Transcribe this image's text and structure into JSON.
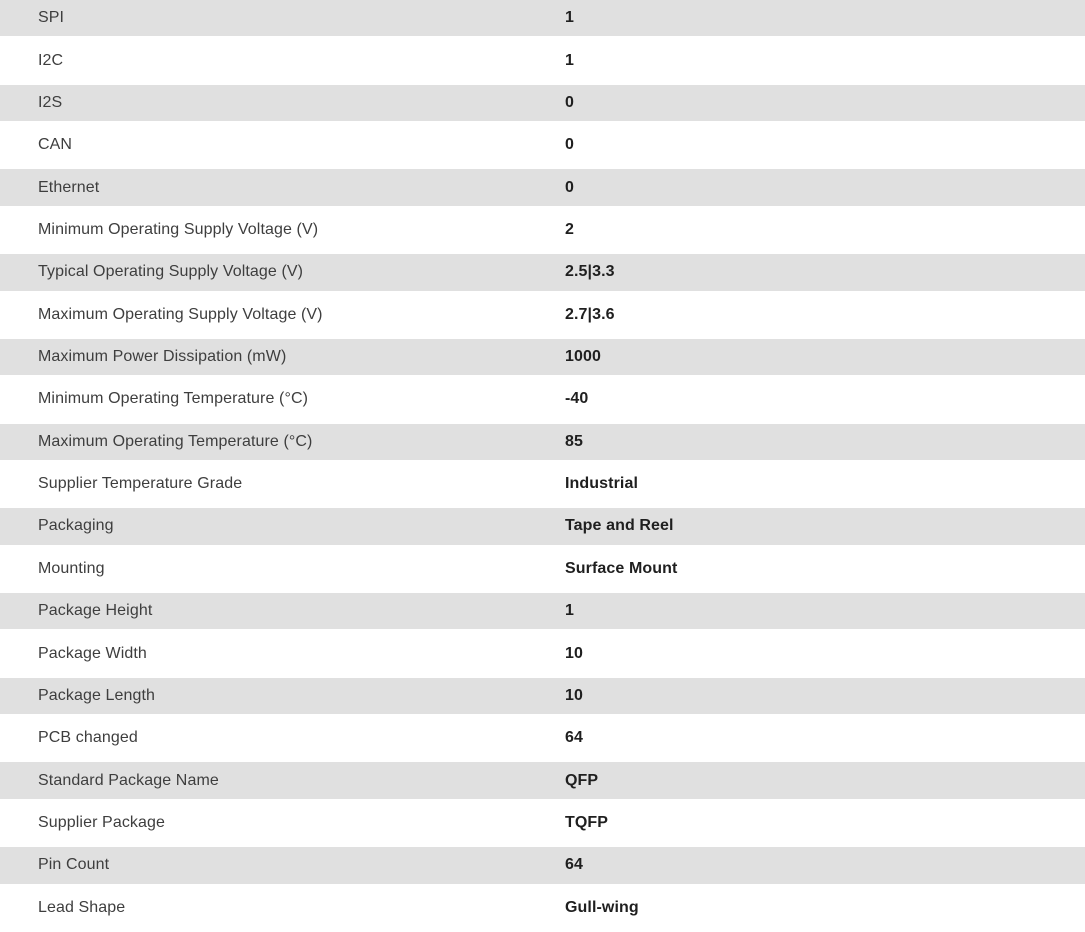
{
  "colors": {
    "row_stripe": "#e0e0e0",
    "row_alt": "#ffffff",
    "label_text": "#3e3e3e",
    "value_text": "#1f1f1f"
  },
  "table": {
    "first_row_striped": true,
    "rows": [
      {
        "label": "SPI",
        "value": "1"
      },
      {
        "label": "I2C",
        "value": "1"
      },
      {
        "label": "I2S",
        "value": "0"
      },
      {
        "label": "CAN",
        "value": "0"
      },
      {
        "label": "Ethernet",
        "value": "0"
      },
      {
        "label": "Minimum Operating Supply Voltage (V)",
        "value": "2"
      },
      {
        "label": "Typical Operating Supply Voltage (V)",
        "value": "2.5|3.3"
      },
      {
        "label": "Maximum Operating Supply Voltage (V)",
        "value": "2.7|3.6"
      },
      {
        "label": "Maximum Power Dissipation (mW)",
        "value": "1000"
      },
      {
        "label": "Minimum Operating Temperature (°C)",
        "value": "-40"
      },
      {
        "label": "Maximum Operating Temperature (°C)",
        "value": "85"
      },
      {
        "label": "Supplier Temperature Grade",
        "value": "Industrial"
      },
      {
        "label": "Packaging",
        "value": "Tape and Reel"
      },
      {
        "label": "Mounting",
        "value": "Surface Mount"
      },
      {
        "label": "Package Height",
        "value": "1"
      },
      {
        "label": "Package Width",
        "value": "10"
      },
      {
        "label": "Package Length",
        "value": "10"
      },
      {
        "label": "PCB changed",
        "value": "64"
      },
      {
        "label": "Standard Package Name",
        "value": "QFP"
      },
      {
        "label": "Supplier Package",
        "value": "TQFP"
      },
      {
        "label": "Pin Count",
        "value": "64"
      },
      {
        "label": "Lead Shape",
        "value": "Gull-wing"
      }
    ]
  }
}
